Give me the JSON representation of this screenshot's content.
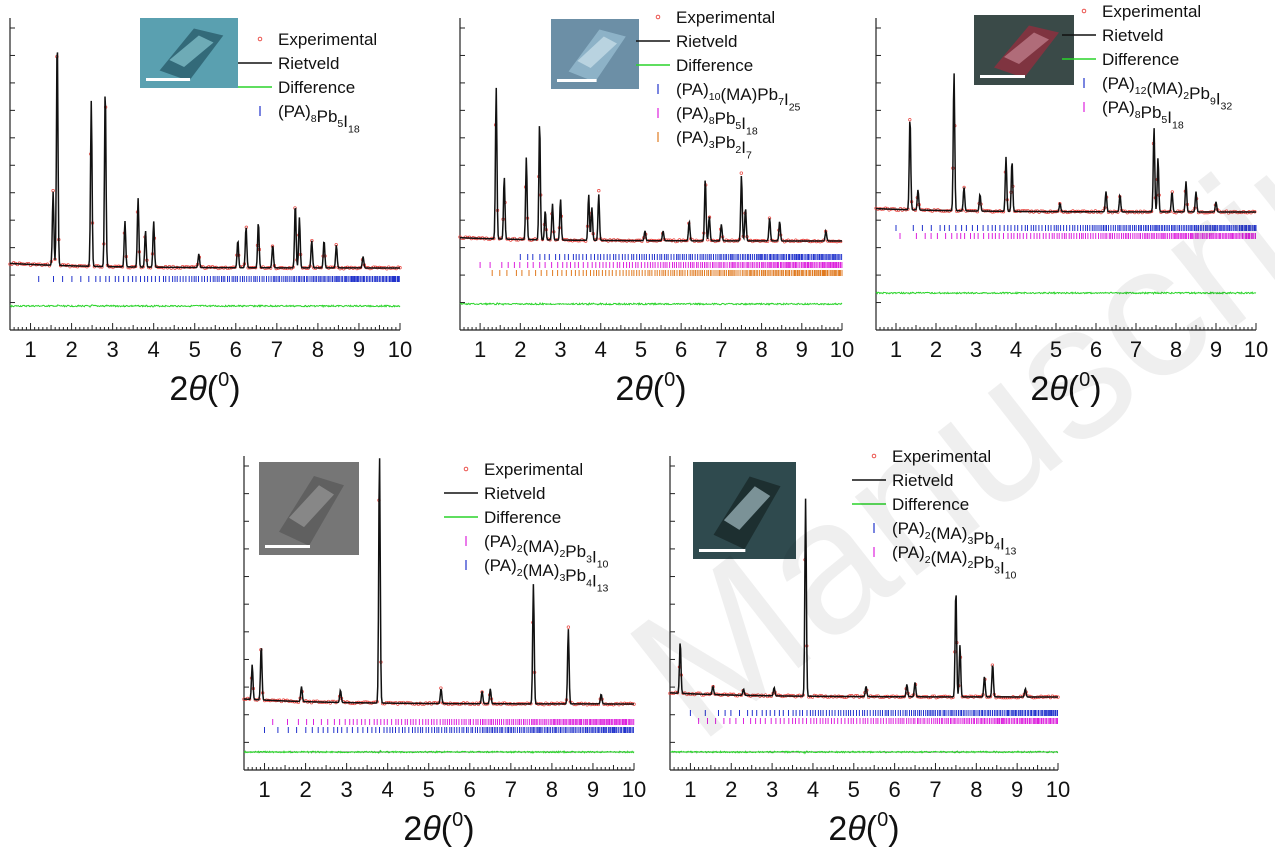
{
  "watermark": "Manuscript",
  "colors": {
    "experimental": "#e8403a",
    "rietveld": "#111111",
    "difference": "#2ad42a",
    "tick_blue": "#2233cc",
    "tick_magenta": "#dd22dd",
    "tick_orange": "#e07a20",
    "axis": "#222222"
  },
  "chart_data": [
    {
      "type": "line",
      "xlabel": "2θ(0)",
      "xlim": [
        0.5,
        10
      ],
      "ticks": [
        "1",
        "2",
        "3",
        "4",
        "5",
        "6",
        "7",
        "8",
        "9",
        "10"
      ],
      "legend": [
        "Experimental",
        "Rietveld",
        "Difference",
        "(PA)8Pb5I18"
      ],
      "legend_position": "top-right",
      "inset": "crystal-photo-teal",
      "peaks": [
        [
          1.55,
          0.32
        ],
        [
          1.65,
          1.0
        ],
        [
          2.48,
          0.72
        ],
        [
          2.82,
          0.78
        ],
        [
          3.3,
          0.2
        ],
        [
          3.62,
          0.3
        ],
        [
          3.8,
          0.16
        ],
        [
          4.0,
          0.2
        ],
        [
          5.1,
          0.06
        ],
        [
          6.05,
          0.12
        ],
        [
          6.25,
          0.18
        ],
        [
          6.55,
          0.2
        ],
        [
          6.9,
          0.1
        ],
        [
          7.45,
          0.28
        ],
        [
          7.55,
          0.22
        ],
        [
          7.85,
          0.12
        ],
        [
          8.15,
          0.12
        ],
        [
          8.45,
          0.1
        ],
        [
          9.1,
          0.05
        ]
      ],
      "tick_rows": [
        {
          "color": "tick_blue",
          "start": 1.2
        }
      ]
    },
    {
      "type": "line",
      "xlabel": "2θ(0)",
      "xlim": [
        0.5,
        10
      ],
      "ticks": [
        "1",
        "2",
        "3",
        "4",
        "5",
        "6",
        "7",
        "8",
        "9",
        "10"
      ],
      "legend": [
        "Experimental",
        "Rietveld",
        "Difference",
        "(PA)10(MA)Pb7I25",
        "(PA)8Pb5I18",
        "(PA)3Pb2I7"
      ],
      "legend_position": "top-right",
      "inset": "crystal-photo-blue",
      "peaks": [
        [
          1.4,
          0.92
        ],
        [
          1.6,
          0.38
        ],
        [
          2.15,
          0.5
        ],
        [
          2.48,
          0.72
        ],
        [
          2.62,
          0.18
        ],
        [
          2.8,
          0.22
        ],
        [
          3.0,
          0.25
        ],
        [
          3.7,
          0.28
        ],
        [
          3.78,
          0.2
        ],
        [
          3.95,
          0.28
        ],
        [
          5.1,
          0.06
        ],
        [
          5.55,
          0.06
        ],
        [
          6.2,
          0.12
        ],
        [
          6.6,
          0.38
        ],
        [
          6.7,
          0.15
        ],
        [
          7.0,
          0.1
        ],
        [
          7.5,
          0.4
        ],
        [
          7.6,
          0.2
        ],
        [
          8.2,
          0.14
        ],
        [
          8.45,
          0.12
        ],
        [
          9.6,
          0.06
        ]
      ],
      "tick_rows": [
        {
          "color": "tick_blue",
          "start": 2.0
        },
        {
          "color": "tick_magenta",
          "start": 1.0
        },
        {
          "color": "tick_orange",
          "start": 1.3
        }
      ]
    },
    {
      "type": "line",
      "xlabel": "2θ(0)",
      "xlim": [
        0.5,
        10
      ],
      "ticks": [
        "1",
        "2",
        "3",
        "4",
        "5",
        "6",
        "7",
        "8",
        "9",
        "10"
      ],
      "legend": [
        "Experimental",
        "Rietveld",
        "Difference",
        "(PA)12(MA)2Pb9I32",
        "(PA)8Pb5I18"
      ],
      "legend_position": "top-right",
      "inset": "crystal-photo-pink",
      "peaks": [
        [
          1.35,
          0.55
        ],
        [
          1.55,
          0.12
        ],
        [
          2.45,
          0.82
        ],
        [
          2.7,
          0.14
        ],
        [
          3.1,
          0.1
        ],
        [
          3.75,
          0.32
        ],
        [
          3.9,
          0.3
        ],
        [
          5.1,
          0.05
        ],
        [
          6.25,
          0.12
        ],
        [
          6.6,
          0.1
        ],
        [
          7.45,
          0.5
        ],
        [
          7.55,
          0.32
        ],
        [
          7.9,
          0.12
        ],
        [
          8.25,
          0.18
        ],
        [
          8.5,
          0.12
        ],
        [
          9.0,
          0.06
        ]
      ],
      "tick_rows": [
        {
          "color": "tick_blue",
          "start": 1.0
        },
        {
          "color": "tick_magenta",
          "start": 1.1
        }
      ]
    },
    {
      "type": "line",
      "xlabel": "2θ(0)",
      "xlim": [
        0.5,
        10
      ],
      "ticks": [
        "1",
        "2",
        "3",
        "4",
        "5",
        "6",
        "7",
        "8",
        "9",
        "10"
      ],
      "legend": [
        "Experimental",
        "Rietveld",
        "Difference",
        "(PA)2(MA)2Pb3I10",
        "(PA)2(MA)3Pb4I13"
      ],
      "legend_position": "top-right",
      "inset": "crystal-photo-gray",
      "peaks": [
        [
          0.7,
          0.14
        ],
        [
          0.92,
          0.22
        ],
        [
          1.9,
          0.06
        ],
        [
          2.85,
          0.05
        ],
        [
          3.8,
          1.0
        ],
        [
          5.3,
          0.06
        ],
        [
          6.3,
          0.05
        ],
        [
          6.5,
          0.06
        ],
        [
          7.55,
          0.48
        ],
        [
          8.4,
          0.3
        ],
        [
          9.2,
          0.04
        ]
      ],
      "tick_rows": [
        {
          "color": "tick_magenta",
          "start": 1.2
        },
        {
          "color": "tick_blue",
          "start": 1.0
        }
      ]
    },
    {
      "type": "line",
      "xlabel": "2θ(0)",
      "xlim": [
        0.5,
        10
      ],
      "ticks": [
        "1",
        "2",
        "3",
        "4",
        "5",
        "6",
        "7",
        "8",
        "9",
        "10"
      ],
      "legend": [
        "Experimental",
        "Rietveld",
        "Difference",
        "(PA)2(MA)3Pb4I13",
        "(PA)2(MA)2Pb3I10"
      ],
      "legend_position": "top-right",
      "inset": "crystal-photo-cyan",
      "peaks": [
        [
          0.75,
          0.25
        ],
        [
          1.55,
          0.04
        ],
        [
          2.3,
          0.03
        ],
        [
          3.05,
          0.04
        ],
        [
          3.82,
          0.95
        ],
        [
          5.3,
          0.05
        ],
        [
          6.3,
          0.06
        ],
        [
          6.5,
          0.07
        ],
        [
          7.5,
          0.52
        ],
        [
          7.6,
          0.25
        ],
        [
          8.2,
          0.1
        ],
        [
          8.4,
          0.16
        ],
        [
          9.2,
          0.04
        ]
      ],
      "tick_rows": [
        {
          "color": "tick_blue",
          "start": 1.0
        },
        {
          "color": "tick_magenta",
          "start": 1.2
        }
      ]
    }
  ]
}
